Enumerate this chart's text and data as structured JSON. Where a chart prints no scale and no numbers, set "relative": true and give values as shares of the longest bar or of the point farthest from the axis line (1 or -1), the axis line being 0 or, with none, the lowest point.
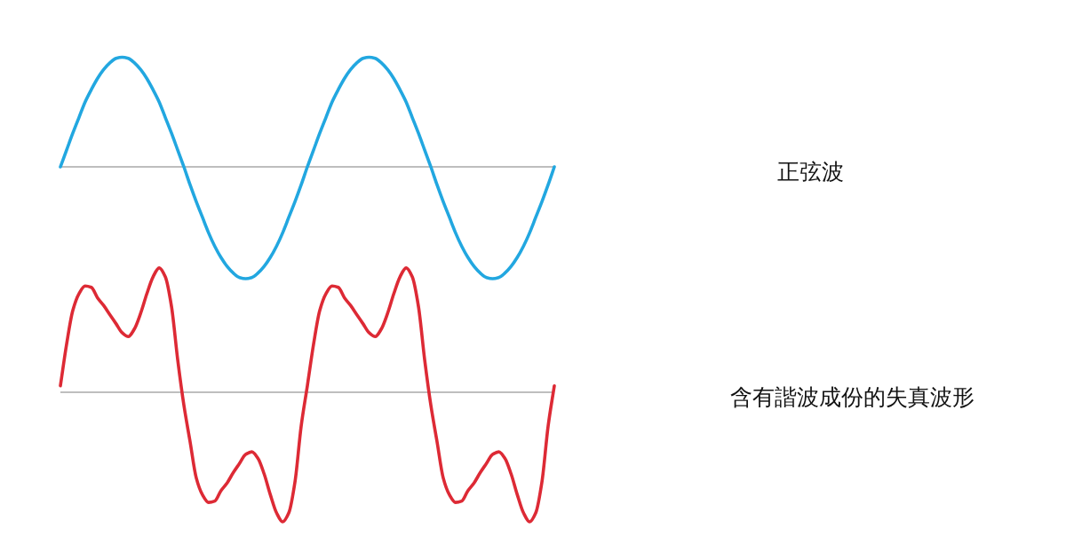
{
  "chart_data": [
    {
      "type": "line",
      "relative": true,
      "categories": [
        null,
        null,
        null,
        null,
        null,
        null,
        null,
        null,
        null,
        null,
        null,
        null,
        null,
        null,
        null,
        null,
        null,
        null,
        null,
        null,
        null,
        null,
        null,
        null,
        null,
        null,
        null,
        null,
        null,
        null,
        null,
        null,
        null,
        null,
        null,
        null,
        null,
        null,
        null,
        null,
        null,
        null,
        null,
        null,
        null,
        null,
        null,
        null,
        null,
        null,
        null,
        null,
        null,
        null,
        null,
        null,
        null,
        null,
        null,
        null,
        null,
        null,
        null,
        null,
        null,
        null,
        null,
        null,
        null,
        null,
        null,
        null,
        null,
        null,
        null,
        null,
        null,
        null,
        null,
        null,
        null
      ],
      "series": [
        {
          "name": "正弦波",
          "color": "#22a7e0",
          "values": [
            0,
            0.15,
            0.3,
            0.44,
            0.58,
            0.69,
            0.79,
            0.87,
            0.93,
            0.97,
            0.98,
            0.97,
            0.93,
            0.87,
            0.79,
            0.69,
            0.58,
            0.44,
            0.3,
            0.15,
            0,
            -0.16,
            -0.31,
            -0.45,
            -0.59,
            -0.71,
            -0.81,
            -0.89,
            -0.95,
            -0.99,
            -1,
            -0.99,
            -0.95,
            -0.89,
            -0.81,
            -0.71,
            -0.59,
            -0.45,
            -0.31,
            -0.16,
            0,
            0.15,
            0.3,
            0.44,
            0.58,
            0.69,
            0.79,
            0.87,
            0.93,
            0.97,
            0.98,
            0.97,
            0.93,
            0.87,
            0.79,
            0.69,
            0.58,
            0.44,
            0.3,
            0.15,
            0,
            -0.16,
            -0.31,
            -0.45,
            -0.59,
            -0.71,
            -0.81,
            -0.89,
            -0.95,
            -0.99,
            -1,
            -0.99,
            -0.95,
            -0.89,
            -0.81,
            -0.71,
            -0.59,
            -0.45,
            -0.31,
            -0.16,
            0
          ]
        }
      ]
    },
    {
      "type": "line",
      "relative": true,
      "categories": [
        null,
        null,
        null,
        null,
        null,
        null,
        null,
        null,
        null,
        null,
        null,
        null,
        null,
        null,
        null,
        null,
        null,
        null,
        null,
        null,
        null,
        null,
        null,
        null,
        null,
        null,
        null,
        null,
        null,
        null,
        null,
        null,
        null,
        null,
        null,
        null,
        null,
        null,
        null,
        null,
        null,
        null,
        null,
        null,
        null,
        null,
        null,
        null,
        null,
        null,
        null,
        null,
        null,
        null,
        null,
        null,
        null,
        null,
        null,
        null,
        null,
        null,
        null,
        null,
        null,
        null,
        null,
        null,
        null,
        null,
        null,
        null,
        null,
        null,
        null,
        null,
        null,
        null,
        null,
        null,
        null
      ],
      "series": [
        {
          "name": "含有諧波成份的失真波形",
          "color": "#dd2a35",
          "values": [
            0.05,
            0.37,
            0.63,
            0.76,
            0.82,
            0.81,
            0.73,
            0.67,
            0.6,
            0.53,
            0.46,
            0.43,
            0.49,
            0.61,
            0.76,
            0.89,
            0.96,
            0.89,
            0.66,
            0.25,
            -0.1,
            -0.38,
            -0.66,
            -0.79,
            -0.85,
            -0.84,
            -0.76,
            -0.7,
            -0.62,
            -0.55,
            -0.48,
            -0.46,
            -0.51,
            -0.63,
            -0.79,
            -0.93,
            -1,
            -0.93,
            -0.69,
            -0.26,
            0.05,
            0.37,
            0.63,
            0.76,
            0.82,
            0.81,
            0.73,
            0.67,
            0.6,
            0.53,
            0.46,
            0.43,
            0.49,
            0.61,
            0.76,
            0.89,
            0.96,
            0.89,
            0.66,
            0.25,
            -0.1,
            -0.38,
            -0.66,
            -0.79,
            -0.85,
            -0.84,
            -0.76,
            -0.7,
            -0.62,
            -0.55,
            -0.48,
            -0.46,
            -0.51,
            -0.63,
            -0.79,
            -0.93,
            -1,
            -0.93,
            -0.69,
            -0.26,
            0.05
          ]
        }
      ]
    }
  ]
}
